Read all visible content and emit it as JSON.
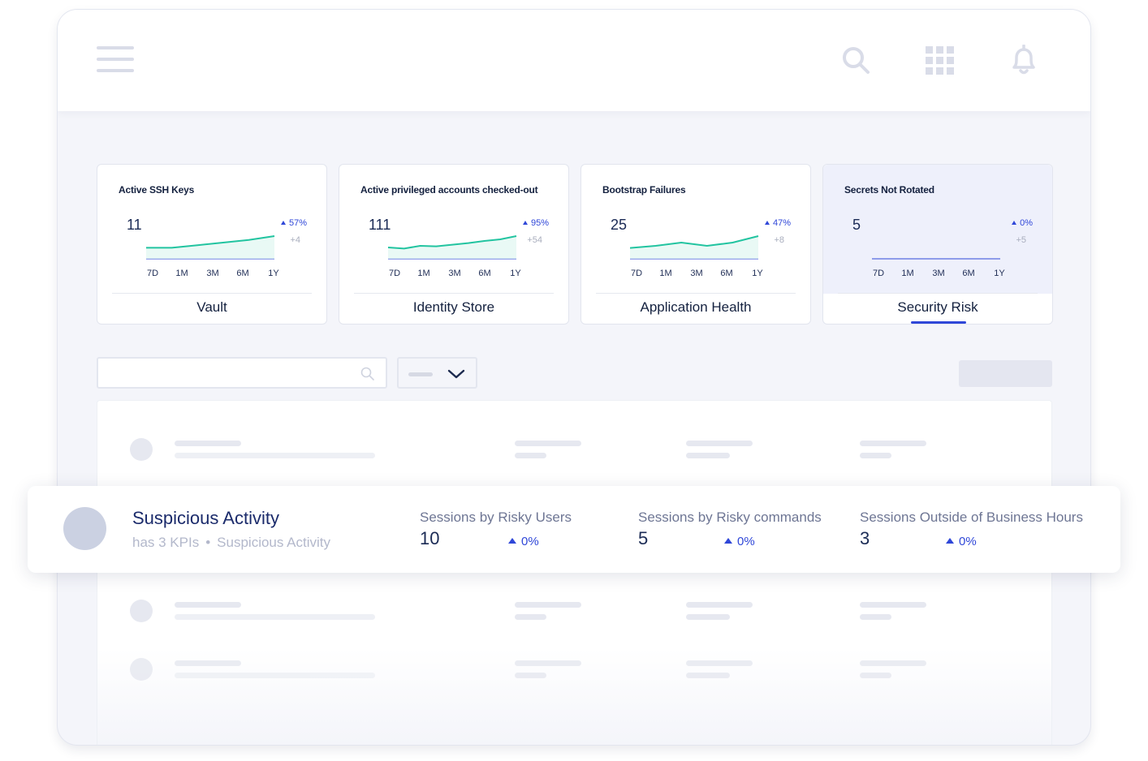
{
  "kpis": [
    {
      "title": "Active SSH Keys",
      "value": "11",
      "pct": "57%",
      "delta": "+4",
      "category": "Vault",
      "active": false,
      "trend": [
        0.1,
        0.1,
        0.3,
        0.5,
        0.7,
        1.0
      ]
    },
    {
      "title": "Active privileged accounts checked-out",
      "value": "111",
      "pct": "95%",
      "delta": "+54",
      "category": "Identity Store",
      "active": false,
      "trend": [
        0.3,
        0.1,
        0.6,
        0.5,
        0.8,
        1.1,
        1.5,
        1.8,
        2.4
      ]
    },
    {
      "title": "Bootstrap Failures",
      "value": "25",
      "pct": "47%",
      "delta": "+8",
      "category": "Application Health",
      "active": false,
      "trend": [
        0.1,
        0.3,
        0.6,
        0.3,
        0.6,
        1.2
      ]
    },
    {
      "title": "Secrets Not Rotated",
      "value": "5",
      "pct": "0%",
      "delta": "+5",
      "category": "Security Risk",
      "active": true,
      "trend": []
    }
  ],
  "time_ranges": [
    "7D",
    "1M",
    "3M",
    "6M",
    "1Y"
  ],
  "colors": {
    "accent": "#2f47d8",
    "trend_line": "#22c4a0",
    "trend_fill": "#dff7f1"
  },
  "featured": {
    "title": "Suspicious Activity",
    "kpi_count": "has 3 KPIs",
    "separator": "•",
    "category": "Suspicious Activity",
    "metrics": [
      {
        "label": "Sessions by Risky Users",
        "value": "10",
        "pct": "0%"
      },
      {
        "label": "Sessions by Risky commands",
        "value": "5",
        "pct": "0%"
      },
      {
        "label": "Sessions Outside of Business Hours",
        "value": "3",
        "pct": "0%"
      }
    ]
  },
  "icons": {
    "menu": "hamburger-menu-icon",
    "search": "search-icon",
    "apps": "apps-grid-icon",
    "notifications": "bell-icon",
    "dropdown": "chevron-down-icon"
  }
}
